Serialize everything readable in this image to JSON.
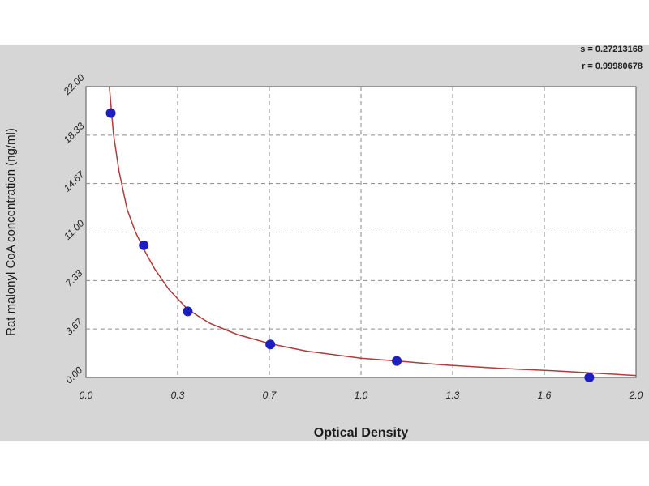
{
  "chart_data": {
    "type": "scatter",
    "xlabel": "Optical Density",
    "ylabel": "Rat malonyl CoA concentration (ng/ml)",
    "xlim": [
      0.0,
      2.0
    ],
    "ylim": [
      0.0,
      22.0
    ],
    "x_ticks": [
      "0.0",
      "0.3",
      "0.7",
      "1.0",
      "1.3",
      "1.6",
      "2.0"
    ],
    "y_ticks": [
      "0.00",
      "3.67",
      "7.33",
      "11.00",
      "14.67",
      "18.33",
      "22.00"
    ],
    "grid": true,
    "points": {
      "x": [
        0.09,
        0.21,
        0.37,
        0.67,
        1.13,
        1.83
      ],
      "y": [
        20.0,
        10.0,
        5.0,
        2.5,
        1.25,
        0.0
      ]
    },
    "fit_curve": {
      "x": [
        0.085,
        0.09,
        0.1,
        0.12,
        0.15,
        0.18,
        0.21,
        0.25,
        0.3,
        0.37,
        0.45,
        0.55,
        0.67,
        0.8,
        1.0,
        1.13,
        1.3,
        1.5,
        1.7,
        1.83,
        2.0
      ],
      "y": [
        22.0,
        20.8,
        18.4,
        15.6,
        12.7,
        11.0,
        9.7,
        8.2,
        6.7,
        5.15,
        4.1,
        3.25,
        2.55,
        2.0,
        1.45,
        1.25,
        0.95,
        0.7,
        0.5,
        0.35,
        0.15
      ]
    },
    "colors": {
      "point": "#1f1fc0",
      "curve": "#b23a3a",
      "plot_background": "#ffffff",
      "frame_background": "#d6d6d6",
      "grid": "#8a8a8a"
    },
    "stats": {
      "s": "s = 0.27213168",
      "r": "r = 0.99980678"
    }
  }
}
